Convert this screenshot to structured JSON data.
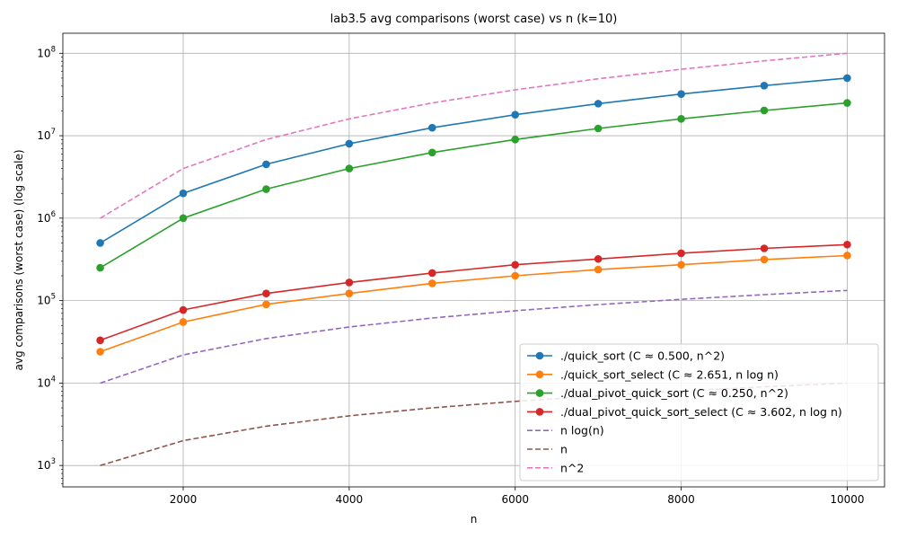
{
  "chart_data": {
    "type": "line",
    "title": "lab3.5 avg comparisons (worst case) vs n (k=10)",
    "xlabel": "n",
    "ylabel": "avg comparisons (worst case) (log scale)",
    "x": [
      1000,
      2000,
      3000,
      4000,
      5000,
      6000,
      7000,
      8000,
      9000,
      10000
    ],
    "xlim": [
      550,
      10450
    ],
    "ylim": [
      550,
      175000000
    ],
    "yscale": "log",
    "grid": true,
    "legend_position": "bottom-right",
    "x_ticks": [
      {
        "value": 2000,
        "label": "2000"
      },
      {
        "value": 4000,
        "label": "4000"
      },
      {
        "value": 6000,
        "label": "6000"
      },
      {
        "value": 8000,
        "label": "8000"
      },
      {
        "value": 10000,
        "label": "10000"
      }
    ],
    "y_ticks": [
      {
        "value": 1000,
        "base": "10",
        "exp": "3"
      },
      {
        "value": 10000,
        "base": "10",
        "exp": "4"
      },
      {
        "value": 100000,
        "base": "10",
        "exp": "5"
      },
      {
        "value": 1000000,
        "base": "10",
        "exp": "6"
      },
      {
        "value": 10000000,
        "base": "10",
        "exp": "7"
      },
      {
        "value": 100000000,
        "base": "10",
        "exp": "8"
      }
    ],
    "series": [
      {
        "name": "./quick_sort (C ≈ 0.500, n^2)",
        "color": "#1f77b4",
        "style": "solid",
        "marker": "circle",
        "values": [
          500000,
          2000000,
          4500000,
          8000000,
          12500000,
          18000000,
          24500000,
          32000000,
          40500000,
          50000000
        ]
      },
      {
        "name": "./quick_sort_select (C ≈ 2.651, n log n)",
        "color": "#ff7f0e",
        "style": "solid",
        "marker": "circle",
        "values": [
          24000,
          55000,
          90000,
          122000,
          162000,
          200000,
          238000,
          272000,
          315000,
          352000
        ]
      },
      {
        "name": "./dual_pivot_quick_sort (C ≈ 0.250, n^2)",
        "color": "#2ca02c",
        "style": "solid",
        "marker": "circle",
        "values": [
          250000,
          1000000,
          2250000,
          4000000,
          6250000,
          9000000,
          12250000,
          16000000,
          20250000,
          25000000
        ]
      },
      {
        "name": "./dual_pivot_quick_sort_select (C ≈ 3.602, n log n)",
        "color": "#d62728",
        "style": "solid",
        "marker": "circle",
        "values": [
          33000,
          77000,
          122000,
          166000,
          216000,
          272000,
          320000,
          375000,
          430000,
          478000
        ]
      },
      {
        "name": "n log(n)",
        "color": "#9467bd",
        "style": "dashed",
        "marker": "none",
        "values": [
          9966,
          21932,
          34652,
          47863,
          61439,
          75304,
          89412,
          103726,
          118221,
          132877
        ]
      },
      {
        "name": "n",
        "color": "#8c564b",
        "style": "dashed",
        "marker": "none",
        "values": [
          1000,
          2000,
          3000,
          4000,
          5000,
          6000,
          7000,
          8000,
          9000,
          10000
        ]
      },
      {
        "name": "n^2",
        "color": "#e377c2",
        "style": "dashed",
        "marker": "none",
        "values": [
          1000000,
          4000000,
          9000000,
          16000000,
          25000000,
          36000000,
          49000000,
          64000000,
          81000000,
          100000000
        ]
      }
    ]
  }
}
